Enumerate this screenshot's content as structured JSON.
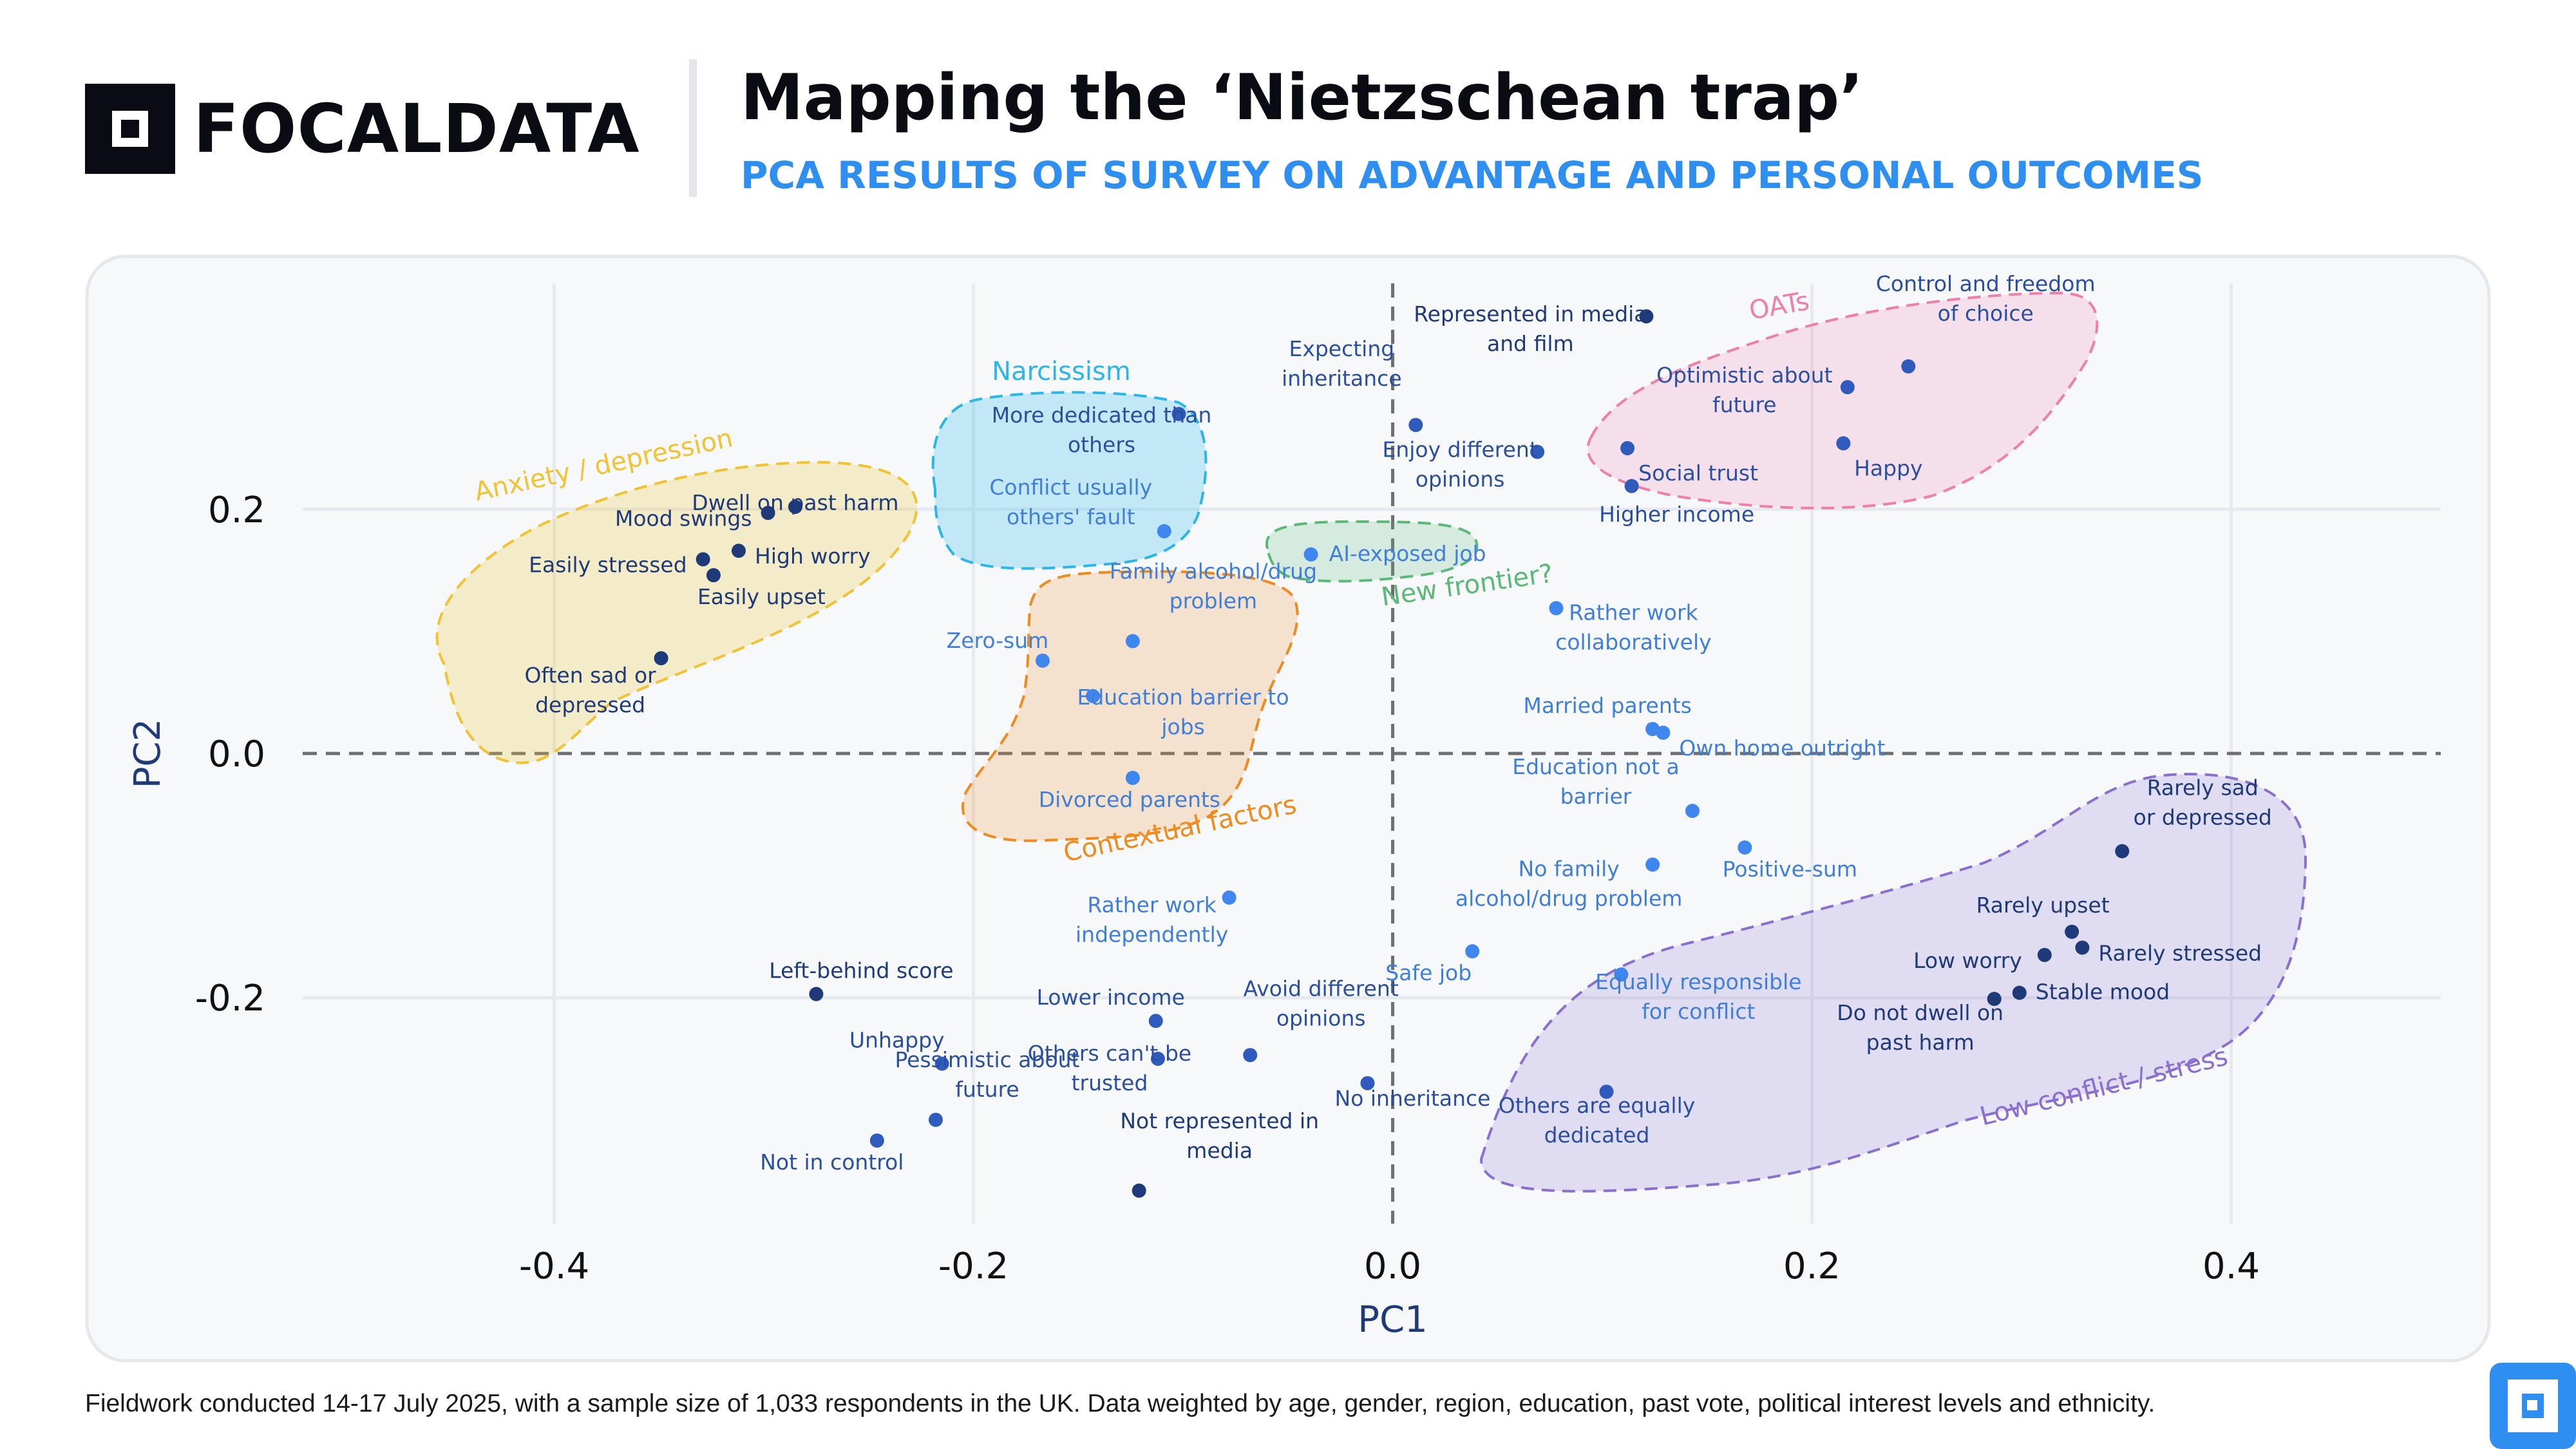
{
  "brand": {
    "name": "FOCALDATA"
  },
  "title": "Mapping the ‘Nietzschean trap’",
  "subtitle": "PCA RESULTS OF SURVEY ON ADVANTAGE AND PERSONAL OUTCOMES",
  "footnote": "Fieldwork conducted 14-17 July 2025, with a sample size of 1,033 respondents in the UK. Data weighted by age, gender, region, education, past vote, political interest levels and ethnicity.",
  "colors": {
    "dark_point": "#1e3a78",
    "mid_point": "#2f5bbd",
    "light_point": "#3f86ee",
    "brand_blue": "#2f8ff0"
  },
  "chart_data": {
    "type": "scatter",
    "xlabel": "PC1",
    "ylabel": "PC2",
    "xlim": [
      -0.52,
      0.5
    ],
    "ylim": [
      -0.385,
      0.385
    ],
    "xticks": [
      {
        "v": -0.4,
        "label": "-0.4"
      },
      {
        "v": -0.2,
        "label": "-0.2"
      },
      {
        "v": 0.0,
        "label": "0.0"
      },
      {
        "v": 0.2,
        "label": "0.2"
      },
      {
        "v": 0.4,
        "label": "0.4"
      }
    ],
    "yticks": [
      {
        "v": 0.2,
        "label": "0.2"
      },
      {
        "v": 0.0,
        "label": "0.0"
      },
      {
        "v": -0.2,
        "label": "-0.2"
      }
    ],
    "grid": true,
    "zero_lines": "dashed",
    "groups": [
      {
        "label": "Anxiety / depression",
        "color": "#f1c232"
      },
      {
        "label": "Narcissism",
        "color": "#2bb6e8"
      },
      {
        "label": "Contextual factors",
        "color": "#f08a1c"
      },
      {
        "label": "New frontier?",
        "color": "#5cb877"
      },
      {
        "label": "OATs",
        "color": "#ef7fa8"
      },
      {
        "label": "Low conflict / stress",
        "color": "#8b6fd0"
      }
    ],
    "points": [
      {
        "label": "Dwell on past harm",
        "x": -0.285,
        "y": 0.202,
        "shade": "dark"
      },
      {
        "label": "Mood swings",
        "x": -0.298,
        "y": 0.197,
        "shade": "dark"
      },
      {
        "label": "Easily stressed",
        "x": -0.329,
        "y": 0.159,
        "shade": "dark"
      },
      {
        "label": "High worry",
        "x": -0.312,
        "y": 0.166,
        "shade": "dark"
      },
      {
        "label": "Easily upset",
        "x": -0.324,
        "y": 0.146,
        "shade": "dark"
      },
      {
        "label": "Often sad or depressed",
        "x": -0.349,
        "y": 0.078,
        "shade": "dark"
      },
      {
        "label": "More dedicated than others",
        "x": -0.102,
        "y": 0.278,
        "shade": "mid"
      },
      {
        "label": "Conflict usually others' fault",
        "x": -0.109,
        "y": 0.182,
        "shade": "light"
      },
      {
        "label": "Family alcohol/drug problem",
        "x": -0.124,
        "y": 0.092,
        "shade": "light"
      },
      {
        "label": "Zero-sum",
        "x": -0.167,
        "y": 0.076,
        "shade": "light"
      },
      {
        "label": "Education barrier to jobs",
        "x": -0.143,
        "y": 0.047,
        "shade": "light"
      },
      {
        "label": "Divorced parents",
        "x": -0.124,
        "y": -0.02,
        "shade": "light"
      },
      {
        "label": "AI-exposed job",
        "x": -0.039,
        "y": 0.163,
        "shade": "light"
      },
      {
        "label": "Expecting inheritance",
        "x": 0.011,
        "y": 0.269,
        "shade": "mid"
      },
      {
        "label": "Represented in media and film",
        "x": 0.121,
        "y": 0.358,
        "shade": "dark"
      },
      {
        "label": "Enjoy different opinions",
        "x": 0.069,
        "y": 0.247,
        "shade": "mid"
      },
      {
        "label": "Control and freedom of choice",
        "x": 0.246,
        "y": 0.317,
        "shade": "mid"
      },
      {
        "label": "Optimistic about future",
        "x": 0.217,
        "y": 0.3,
        "shade": "mid"
      },
      {
        "label": "Social trust",
        "x": 0.112,
        "y": 0.25,
        "shade": "mid"
      },
      {
        "label": "Happy",
        "x": 0.215,
        "y": 0.254,
        "shade": "mid"
      },
      {
        "label": "Higher income",
        "x": 0.114,
        "y": 0.219,
        "shade": "mid"
      },
      {
        "label": "Rather work collaboratively",
        "x": 0.078,
        "y": 0.119,
        "shade": "light"
      },
      {
        "label": "Married parents",
        "x": 0.124,
        "y": 0.02,
        "shade": "light"
      },
      {
        "label": "Own home outright",
        "x": 0.129,
        "y": 0.017,
        "shade": "light"
      },
      {
        "label": "Education not a barrier",
        "x": 0.143,
        "y": -0.047,
        "shade": "light"
      },
      {
        "label": "Positive-sum",
        "x": 0.168,
        "y": -0.077,
        "shade": "light"
      },
      {
        "label": "No family alcohol/drug problem",
        "x": 0.124,
        "y": -0.091,
        "shade": "light"
      },
      {
        "label": "Safe job",
        "x": 0.038,
        "y": -0.162,
        "shade": "light"
      },
      {
        "label": "Equally responsible for conflict",
        "x": 0.109,
        "y": -0.181,
        "shade": "light"
      },
      {
        "label": "Others are equally dedicated",
        "x": 0.102,
        "y": -0.277,
        "shade": "mid"
      },
      {
        "label": "No inheritance",
        "x": -0.012,
        "y": -0.27,
        "shade": "mid"
      },
      {
        "label": "Rarely sad or depressed",
        "x": 0.348,
        "y": -0.08,
        "shade": "dark"
      },
      {
        "label": "Rarely upset",
        "x": 0.324,
        "y": -0.146,
        "shade": "dark"
      },
      {
        "label": "Low worry",
        "x": 0.311,
        "y": -0.165,
        "shade": "dark"
      },
      {
        "label": "Rarely stressed",
        "x": 0.329,
        "y": -0.159,
        "shade": "dark"
      },
      {
        "label": "Stable mood",
        "x": 0.299,
        "y": -0.196,
        "shade": "dark"
      },
      {
        "label": "Do not dwell on past harm",
        "x": 0.287,
        "y": -0.201,
        "shade": "dark"
      },
      {
        "label": "Rather work independently",
        "x": -0.078,
        "y": -0.118,
        "shade": "light"
      },
      {
        "label": "Lower income",
        "x": -0.113,
        "y": -0.219,
        "shade": "mid"
      },
      {
        "label": "Avoid different opinions",
        "x": -0.068,
        "y": -0.247,
        "shade": "mid"
      },
      {
        "label": "Others can't be trusted",
        "x": -0.112,
        "y": -0.25,
        "shade": "mid"
      },
      {
        "label": "Left-behind score",
        "x": -0.275,
        "y": -0.197,
        "shade": "dark"
      },
      {
        "label": "Unhappy",
        "x": -0.215,
        "y": -0.254,
        "shade": "mid"
      },
      {
        "label": "Pessimistic about future",
        "x": -0.218,
        "y": -0.3,
        "shade": "mid"
      },
      {
        "label": "Not in control",
        "x": -0.246,
        "y": -0.317,
        "shade": "mid"
      },
      {
        "label": "Not represented in media",
        "x": -0.121,
        "y": -0.358,
        "shade": "dark"
      }
    ]
  }
}
